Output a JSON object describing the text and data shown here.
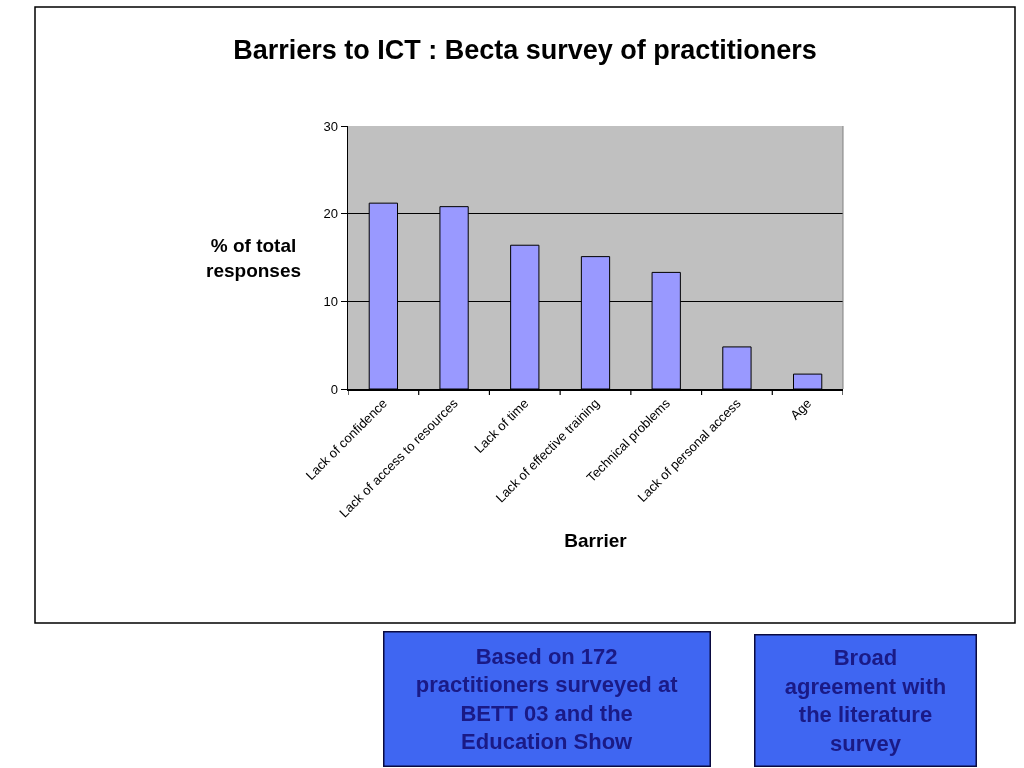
{
  "chart_data": {
    "type": "bar",
    "title": "Barriers to ICT : Becta survey of practitioners",
    "xlabel": "Barrier",
    "ylabel": "% of total\nresponses",
    "categories": [
      "Lack of confidence",
      "Lack of access to resources",
      "Lack of time",
      "Lack of effective training",
      "Technical problems",
      "Lack of personal access",
      "Age"
    ],
    "values": [
      21.2,
      20.8,
      16.4,
      15.1,
      13.3,
      4.8,
      1.7
    ],
    "color": "#9999ff",
    "ylim": [
      0,
      30
    ],
    "yticks": [
      0,
      10,
      20,
      30
    ],
    "grid": "y",
    "annotations": [
      "Based on 172\npractitioners surveyed at\nBETT 03 and the\nEducation Show",
      "Broad\nagreement with\nthe literature\nsurvey"
    ]
  }
}
